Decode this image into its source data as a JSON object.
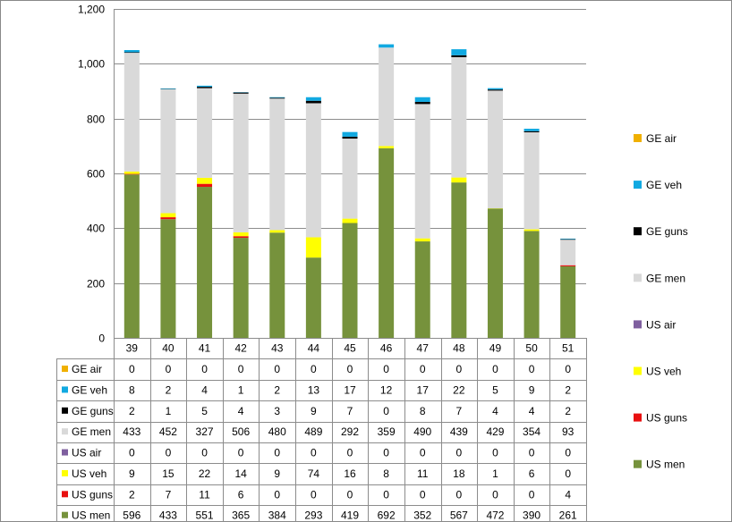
{
  "chart_data": {
    "type": "bar",
    "stacked": true,
    "categories": [
      "39",
      "40",
      "41",
      "42",
      "43",
      "44",
      "45",
      "46",
      "47",
      "48",
      "49",
      "50",
      "51"
    ],
    "ylim": [
      0,
      1200
    ],
    "yticks": [
      0,
      200,
      400,
      600,
      800,
      1000,
      1200
    ],
    "ytick_labels": [
      "0",
      "200",
      "400",
      "600",
      "800",
      "1,000",
      "1,200"
    ],
    "grid": true,
    "legend": "right",
    "data_table": true,
    "series": [
      {
        "name": "US men",
        "color": "#76923c",
        "values": [
          596,
          433,
          551,
          365,
          384,
          293,
          419,
          692,
          352,
          567,
          472,
          390,
          261
        ]
      },
      {
        "name": "US guns",
        "color": "#e81010",
        "values": [
          2,
          7,
          11,
          6,
          0,
          0,
          0,
          0,
          0,
          0,
          0,
          0,
          4
        ]
      },
      {
        "name": "US veh",
        "color": "#ffff00",
        "values": [
          9,
          15,
          22,
          14,
          9,
          74,
          16,
          8,
          11,
          18,
          1,
          6,
          0
        ]
      },
      {
        "name": "US air",
        "color": "#7f5f9f",
        "values": [
          0,
          0,
          0,
          0,
          0,
          0,
          0,
          0,
          0,
          0,
          0,
          0,
          0
        ]
      },
      {
        "name": "GE men",
        "color": "#d9d9d9",
        "values": [
          433,
          452,
          327,
          506,
          480,
          489,
          292,
          359,
          490,
          439,
          429,
          354,
          93
        ]
      },
      {
        "name": "GE guns",
        "color": "#000000",
        "values": [
          2,
          1,
          5,
          4,
          3,
          9,
          7,
          0,
          8,
          7,
          4,
          4,
          2
        ]
      },
      {
        "name": "GE veh",
        "color": "#11a9e1",
        "values": [
          8,
          2,
          4,
          1,
          2,
          13,
          17,
          12,
          17,
          22,
          5,
          9,
          2
        ]
      },
      {
        "name": "GE air",
        "color": "#f0b000",
        "values": [
          0,
          0,
          0,
          0,
          0,
          0,
          0,
          0,
          0,
          0,
          0,
          0,
          0
        ]
      }
    ]
  }
}
